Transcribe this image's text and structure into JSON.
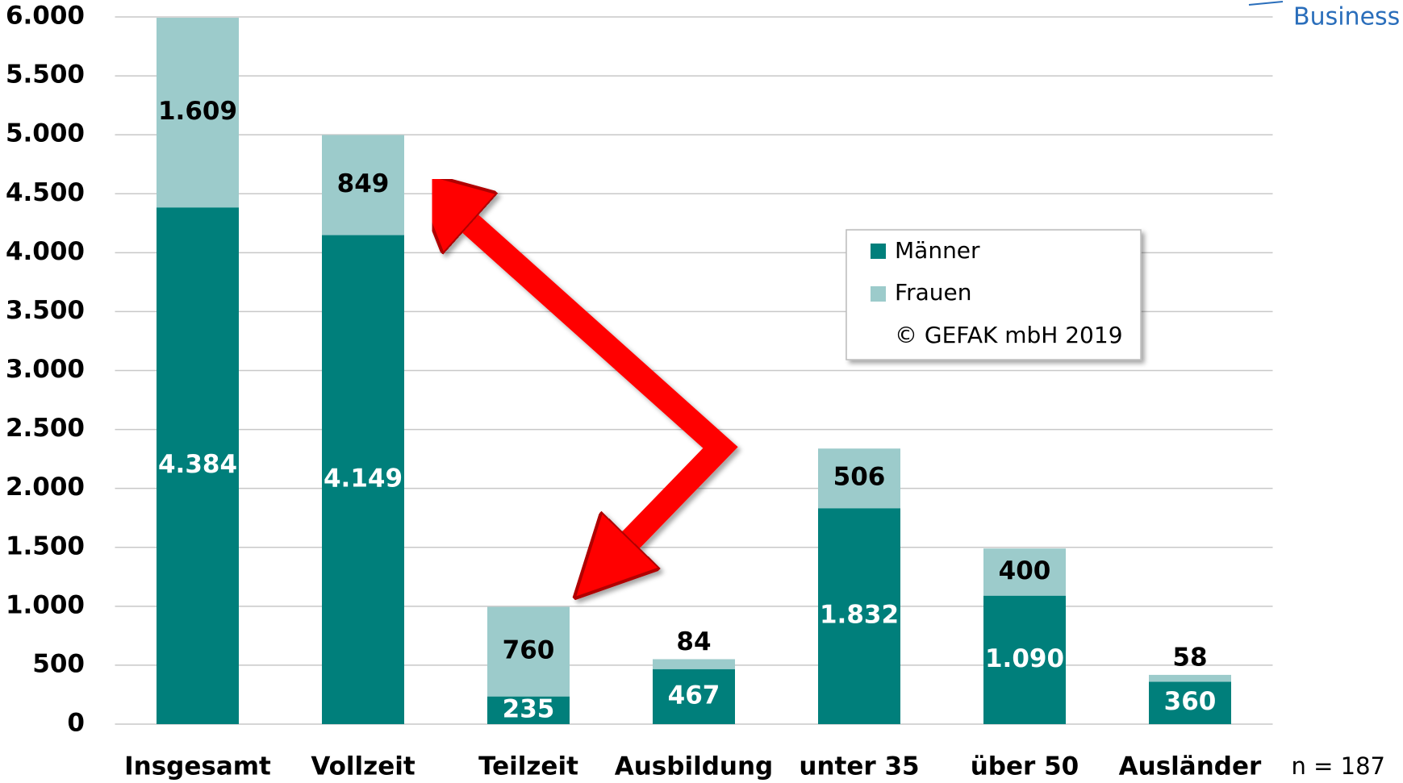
{
  "chart_data": {
    "type": "stacked_bar",
    "categories": [
      "Insgesamt",
      "Vollzeit",
      "Teilzeit",
      "Ausbildung",
      "unter 35",
      "über 50",
      "Ausländer"
    ],
    "series": [
      {
        "name": "Männer",
        "color": "#007f7b",
        "label_color": "#ffffff",
        "values": [
          4384,
          4149,
          235,
          467,
          1832,
          1090,
          360
        ],
        "value_labels": [
          "4.384",
          "4.149",
          "235",
          "467",
          "1.832",
          "1.090",
          "360"
        ]
      },
      {
        "name": "Frauen",
        "color": "#9ccbcb",
        "label_color": "#000000",
        "values": [
          1609,
          849,
          760,
          84,
          506,
          400,
          58
        ],
        "value_labels": [
          "1.609",
          "849",
          "760",
          "84",
          "506",
          "400",
          "58"
        ]
      }
    ],
    "ylim": [
      0,
      6000
    ],
    "yticks": [
      0,
      500,
      {
        "value": 1000,
        "label": "1.000"
      },
      {
        "value": 1500,
        "label": "1.500"
      },
      {
        "value": 2000,
        "label": "2.000"
      },
      {
        "value": 2500,
        "label": "2.500"
      },
      {
        "value": 3000,
        "label": "3.000"
      },
      {
        "value": 3500,
        "label": "3.500"
      },
      {
        "value": 4000,
        "label": "4.000"
      },
      {
        "value": 4500,
        "label": "4.500"
      },
      {
        "value": 5000,
        "label": "5.000"
      },
      {
        "value": 5500,
        "label": "5.500"
      },
      {
        "value": 6000,
        "label": "6.000"
      }
    ],
    "grid": true,
    "legend_note": "© GEFAK mbH 2019",
    "annotation": "n = 187",
    "logo_text": "Business"
  }
}
